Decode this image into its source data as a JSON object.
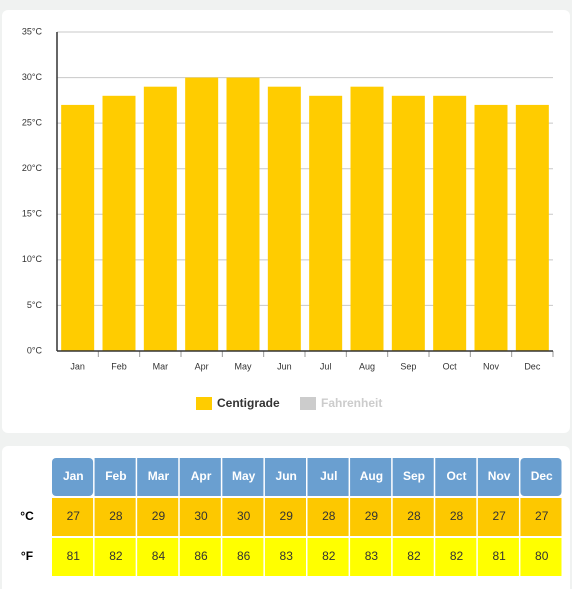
{
  "chart_data": {
    "type": "bar",
    "categories": [
      "Jan",
      "Feb",
      "Mar",
      "Apr",
      "May",
      "Jun",
      "Jul",
      "Aug",
      "Sep",
      "Oct",
      "Nov",
      "Dec"
    ],
    "series": [
      {
        "name": "Centigrade",
        "color": "#ffcc00",
        "values": [
          27,
          28,
          29,
          30,
          30,
          29,
          28,
          29,
          28,
          28,
          27,
          27
        ]
      },
      {
        "name": "Fahrenheit",
        "color": "#cccccc",
        "visible": false,
        "values": [
          81,
          82,
          84,
          86,
          86,
          83,
          82,
          83,
          82,
          82,
          81,
          80
        ]
      }
    ],
    "ylim": [
      0,
      35
    ],
    "yticks": [
      {
        "value": 0,
        "label": "0°C"
      },
      {
        "value": 5,
        "label": "5°C"
      },
      {
        "value": 10,
        "label": "10°C"
      },
      {
        "value": 15,
        "label": "15°C"
      },
      {
        "value": 20,
        "label": "20°C"
      },
      {
        "value": 25,
        "label": "25°C"
      },
      {
        "value": 30,
        "label": "30°C"
      },
      {
        "value": 35,
        "label": "35°C"
      }
    ],
    "grid": true
  },
  "table": {
    "row_labels": [
      "°C",
      "°F"
    ],
    "row_colors": [
      "#fdc800",
      "#ffff00"
    ],
    "header_color": "#6a9fd0"
  }
}
